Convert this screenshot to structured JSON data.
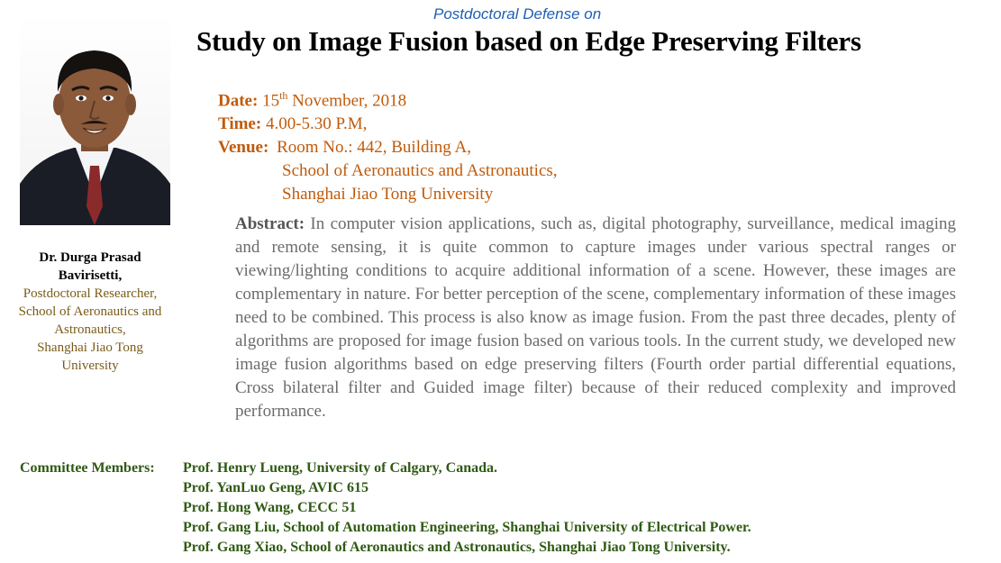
{
  "header": {
    "subtitle": "Postdoctoral Defense on",
    "title": "Study on Image Fusion based on Edge Preserving Filters"
  },
  "photo": {
    "background_color": "#1a1d26",
    "skin_color": "#8a5a3b",
    "shirt_color": "#f4f4f6",
    "tie_color": "#8b2a2a"
  },
  "speaker": {
    "name_line1": "Dr. Durga Prasad",
    "name_line2": "Bavirisetti,",
    "role": "Postdoctoral Researcher,",
    "affiliation_line1": "School of Aeronautics and",
    "affiliation_line2": "Astronautics,",
    "affiliation_line3": "Shanghai Jiao Tong",
    "affiliation_line4": "University"
  },
  "details": {
    "date_label": "Date:",
    "date_day": "15",
    "date_suffix": "th",
    "date_rest": "November, 2018",
    "time_label": "Time:",
    "time_value": "4.00-5.30 P.M,",
    "venue_label": "Venue:",
    "venue_line1": "Room No.: 442, Building A,",
    "venue_line2": "School of Aeronautics and Astronautics,",
    "venue_line3": "Shanghai Jiao Tong University"
  },
  "abstract": {
    "label": "Abstract:",
    "text": "In computer vision applications, such as, digital photography, surveillance, medical imaging and remote sensing, it is quite common to capture images under various spectral ranges or viewing/lighting conditions to acquire  additional information of a scene. However, these images are complementary in nature. For better perception of the scene, complementary information of these images need to be combined. This process is also know as image fusion. From the past three decades, plenty of algorithms are proposed for image fusion based on various tools. In the current study, we developed new image fusion algorithms based on edge preserving filters (Fourth order partial differential equations, Cross bilateral filter and Guided image filter) because of their reduced complexity and improved performance."
  },
  "committee": {
    "label": "Committee Members:",
    "members": [
      "Prof. Henry Lueng, University of Calgary, Canada.",
      "Prof. YanLuo Geng, AVIC 615",
      "Prof. Hong Wang, CECC 51",
      "Prof. Gang Liu, School of Automation Engineering, Shanghai University of Electrical Power.",
      "Prof. Gang Xiao, School of Aeronautics and Astronautics, Shanghai Jiao Tong University."
    ]
  }
}
